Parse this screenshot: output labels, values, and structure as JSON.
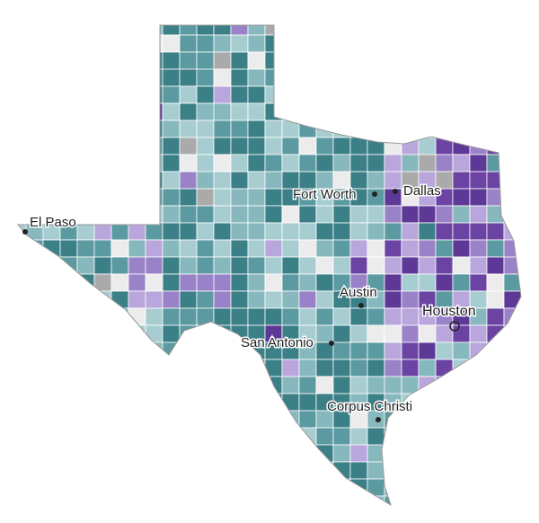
{
  "cities": [
    {
      "label": "El Paso"
    },
    {
      "label": "Fort Worth"
    },
    {
      "label": "Dallas"
    },
    {
      "label": "Austin"
    },
    {
      "label": "San Antonio"
    },
    {
      "label": "Houston"
    },
    {
      "label": "Corpus Christi"
    }
  ]
}
